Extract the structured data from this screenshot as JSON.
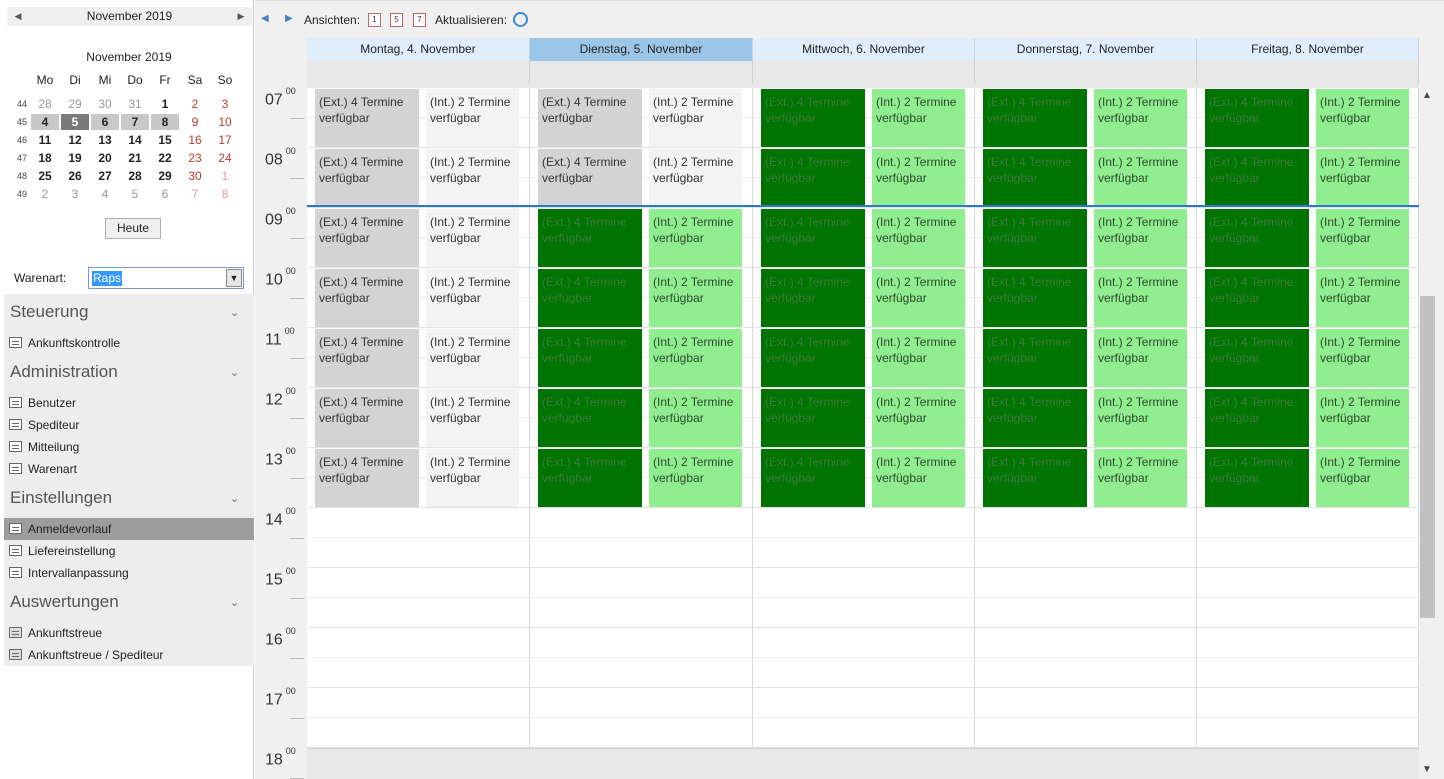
{
  "minical": {
    "nav_title": "November 2019",
    "month_title": "November 2019",
    "dow": [
      "Mo",
      "Di",
      "Mi",
      "Do",
      "Fr",
      "Sa",
      "So"
    ],
    "weeks": [
      {
        "wk": "44",
        "days": [
          [
            "28",
            "other"
          ],
          [
            "29",
            "other"
          ],
          [
            "30",
            "other"
          ],
          [
            "31",
            "other"
          ],
          [
            "1",
            "bold"
          ],
          [
            "2",
            "wkend"
          ],
          [
            "3",
            "wkend"
          ]
        ]
      },
      {
        "wk": "45",
        "days": [
          [
            "4",
            "sel bold"
          ],
          [
            "5",
            "today bold"
          ],
          [
            "6",
            "sel bold"
          ],
          [
            "7",
            "sel bold"
          ],
          [
            "8",
            "sel bold"
          ],
          [
            "9",
            "wkend"
          ],
          [
            "10",
            "wkend"
          ]
        ]
      },
      {
        "wk": "46",
        "days": [
          [
            "11",
            "bold"
          ],
          [
            "12",
            "bold"
          ],
          [
            "13",
            "bold"
          ],
          [
            "14",
            "bold"
          ],
          [
            "15",
            "bold"
          ],
          [
            "16",
            "wkend"
          ],
          [
            "17",
            "wkend"
          ]
        ]
      },
      {
        "wk": "47",
        "days": [
          [
            "18",
            "bold"
          ],
          [
            "19",
            "bold"
          ],
          [
            "20",
            "bold"
          ],
          [
            "21",
            "bold"
          ],
          [
            "22",
            "bold"
          ],
          [
            "23",
            "wkend"
          ],
          [
            "24",
            "wkend"
          ]
        ]
      },
      {
        "wk": "48",
        "days": [
          [
            "25",
            "bold"
          ],
          [
            "26",
            "bold"
          ],
          [
            "27",
            "bold"
          ],
          [
            "28",
            "bold"
          ],
          [
            "29",
            "bold"
          ],
          [
            "30",
            "wkend"
          ],
          [
            "1",
            "other wkend"
          ]
        ]
      },
      {
        "wk": "49",
        "days": [
          [
            "2",
            "other"
          ],
          [
            "3",
            "other"
          ],
          [
            "4",
            "other"
          ],
          [
            "5",
            "other"
          ],
          [
            "6",
            "other"
          ],
          [
            "7",
            "other wkend"
          ],
          [
            "8",
            "other wkend"
          ]
        ]
      }
    ],
    "today_button": "Heute"
  },
  "filter": {
    "label": "Warenart:",
    "value": "Raps"
  },
  "nav": {
    "groups": [
      {
        "title": "Steuerung",
        "items": [
          {
            "label": "Ankunftskontrolle",
            "icon": "form-icon"
          }
        ]
      },
      {
        "title": "Administration",
        "items": [
          {
            "label": "Benutzer",
            "icon": "form-icon"
          },
          {
            "label": "Spediteur",
            "icon": "form-icon"
          },
          {
            "label": "Mitteilung",
            "icon": "form-icon"
          },
          {
            "label": "Warenart",
            "icon": "form-icon"
          }
        ]
      },
      {
        "title": "Einstellungen",
        "items": [
          {
            "label": "Anmeldevorlauf",
            "icon": "form-icon",
            "active": true
          },
          {
            "label": "Liefereinstellung",
            "icon": "form-icon"
          },
          {
            "label": "Intervallanpassung",
            "icon": "form-icon"
          }
        ]
      },
      {
        "title": "Auswertungen",
        "items": [
          {
            "label": "Ankunftstreue",
            "icon": "printer-icon"
          },
          {
            "label": "Ankunftstreue / Spediteur",
            "icon": "printer-icon"
          }
        ]
      }
    ]
  },
  "toolbar": {
    "views_label": "Ansichten:",
    "view_buttons": [
      "1",
      "5",
      "7"
    ],
    "refresh_label": "Aktualisieren:"
  },
  "days": [
    {
      "label": "Montag, 4. November",
      "today": false
    },
    {
      "label": "Dienstag, 5. November",
      "today": true
    },
    {
      "label": "Mittwoch, 6. November",
      "today": false
    },
    {
      "label": "Donnerstag, 7. November",
      "today": false
    },
    {
      "label": "Freitag, 8. November",
      "today": false
    }
  ],
  "hours": [
    "07",
    "08",
    "09",
    "10",
    "11",
    "12",
    "13",
    "14",
    "15",
    "16",
    "17",
    "18"
  ],
  "minutes_label": "00",
  "appointments": {
    "ext_text": "(Ext.) 4 Termine verfügbar",
    "int_text": "(Int.) 2 Termine verfügbar",
    "slot_hours": [
      "07",
      "08",
      "09",
      "10",
      "11",
      "12",
      "13"
    ],
    "availability": [
      [
        "grey",
        "grey",
        "grey",
        "grey",
        "grey",
        "grey",
        "grey"
      ],
      [
        "grey",
        "grey",
        "green",
        "green",
        "green",
        "green",
        "green"
      ],
      [
        "green",
        "green",
        "green",
        "green",
        "green",
        "green",
        "green"
      ],
      [
        "green",
        "green",
        "green",
        "green",
        "green",
        "green",
        "green"
      ],
      [
        "green",
        "green",
        "green",
        "green",
        "green",
        "green",
        "green"
      ]
    ]
  },
  "colors": {
    "ext_green": "#007400",
    "int_green": "#90ee90",
    "ext_grey": "#d3d3d3",
    "int_grey": "#f3f3f3",
    "today_header": "#9cc6e8",
    "now_line": "#2a78c8"
  }
}
